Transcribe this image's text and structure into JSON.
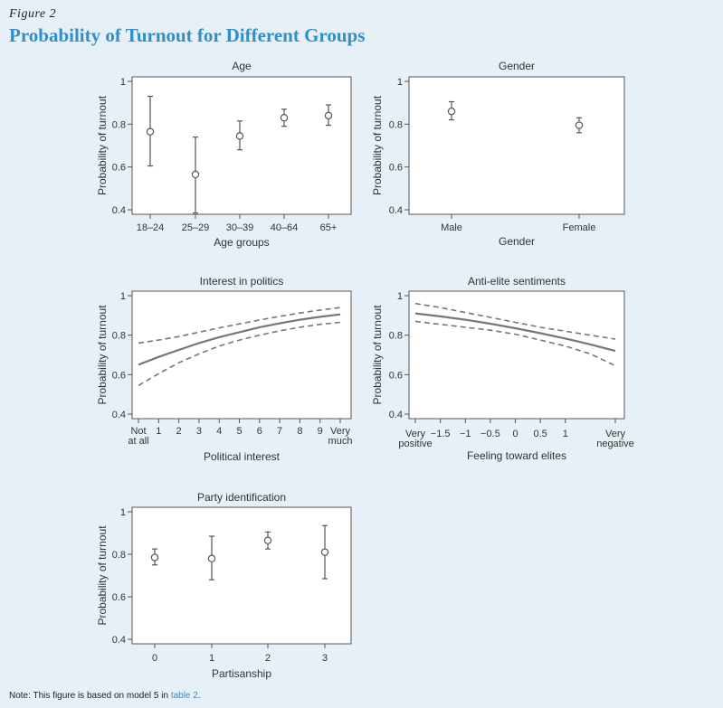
{
  "figure": {
    "label": "Figure 2",
    "title": "Probability of Turnout for Different Groups",
    "note_prefix": "Note: This figure is based on model 5 in ",
    "note_link": "table 2",
    "note_suffix": "."
  },
  "colors": {
    "title": "#2f8fc9",
    "marks": "#777777",
    "plot_bg": "#ffffff",
    "page_bg": "#e6f0f6"
  },
  "chart_data": [
    {
      "id": "age",
      "type": "scatter",
      "title": "Age",
      "xlabel": "Age groups",
      "ylabel": "Probability of turnout",
      "categories": [
        "18–24",
        "25–29",
        "30–39",
        "40–64",
        "65+"
      ],
      "values": [
        0.765,
        0.565,
        0.745,
        0.83,
        0.84
      ],
      "ci_low": [
        0.605,
        0.385,
        0.68,
        0.79,
        0.795
      ],
      "ci_high": [
        0.93,
        0.74,
        0.815,
        0.87,
        0.89
      ],
      "ylim": [
        0.4,
        1
      ],
      "yticks": [
        0.4,
        0.6,
        0.8,
        1
      ],
      "ytick_labels": [
        "0.4",
        "0.6",
        "0.8",
        "1"
      ],
      "grid": false
    },
    {
      "id": "gender",
      "type": "scatter",
      "title": "Gender",
      "xlabel": "Gender",
      "ylabel": "Probability of turnout",
      "categories": [
        "Male",
        "Female"
      ],
      "values": [
        0.86,
        0.795
      ],
      "ci_low": [
        0.82,
        0.76
      ],
      "ci_high": [
        0.905,
        0.83
      ],
      "ylim": [
        0.4,
        1
      ],
      "yticks": [
        0.4,
        0.6,
        0.8,
        1
      ],
      "ytick_labels": [
        "0.4",
        "0.6",
        "0.8",
        "1"
      ],
      "grid": false
    },
    {
      "id": "interest",
      "type": "line",
      "title": "Interest in politics",
      "xlabel": "Political interest",
      "ylabel": "Probability of turnout",
      "x": [
        0,
        1,
        2,
        3,
        4,
        5,
        6,
        7,
        8,
        9,
        10
      ],
      "series": [
        {
          "role": "estimate",
          "style": "solid",
          "values": [
            0.65,
            0.69,
            0.725,
            0.76,
            0.79,
            0.815,
            0.84,
            0.86,
            0.878,
            0.893,
            0.905
          ]
        },
        {
          "role": "upper_ci",
          "style": "dashed",
          "values": [
            0.76,
            0.775,
            0.793,
            0.815,
            0.837,
            0.857,
            0.877,
            0.895,
            0.912,
            0.927,
            0.94
          ]
        },
        {
          "role": "lower_ci",
          "style": "dashed",
          "values": [
            0.545,
            0.605,
            0.66,
            0.705,
            0.745,
            0.775,
            0.8,
            0.822,
            0.84,
            0.855,
            0.865
          ]
        }
      ],
      "xticks": [
        0,
        1,
        2,
        3,
        4,
        5,
        6,
        7,
        8,
        9,
        10
      ],
      "xtick_labels": [
        [
          "Not",
          "at all"
        ],
        [
          "1"
        ],
        [
          "2"
        ],
        [
          "3"
        ],
        [
          "4"
        ],
        [
          "5"
        ],
        [
          "6"
        ],
        [
          "7"
        ],
        [
          "8"
        ],
        [
          "9"
        ],
        [
          "Very",
          "much"
        ]
      ],
      "ylim": [
        0.4,
        1
      ],
      "yticks": [
        0.4,
        0.6,
        0.8,
        1
      ],
      "ytick_labels": [
        "0.4",
        "0.6",
        "0.8",
        "1"
      ],
      "grid": false
    },
    {
      "id": "antielite",
      "type": "line",
      "title": "Anti-elite sentiments",
      "xlabel": "Feeling toward elites",
      "ylabel": "Probability of turnout",
      "x": [
        -2,
        -1.5,
        -1,
        -0.5,
        0,
        0.5,
        1,
        1.5,
        2
      ],
      "series": [
        {
          "role": "estimate",
          "style": "solid",
          "values": [
            0.91,
            0.895,
            0.878,
            0.858,
            0.835,
            0.81,
            0.783,
            0.753,
            0.72
          ]
        },
        {
          "role": "upper_ci",
          "style": "dashed",
          "values": [
            0.96,
            0.94,
            0.915,
            0.89,
            0.865,
            0.84,
            0.82,
            0.8,
            0.78
          ]
        },
        {
          "role": "lower_ci",
          "style": "dashed",
          "values": [
            0.87,
            0.855,
            0.84,
            0.825,
            0.805,
            0.775,
            0.745,
            0.705,
            0.645
          ]
        }
      ],
      "xticks": [
        -2,
        -1.5,
        -1,
        -0.5,
        0,
        0.5,
        1,
        2
      ],
      "xtick_labels": [
        [
          "Very",
          "positive"
        ],
        [
          "−1.5"
        ],
        [
          "−1"
        ],
        [
          "−0.5"
        ],
        [
          "0"
        ],
        [
          "0.5"
        ],
        [
          "1"
        ],
        [
          "Very",
          "negative"
        ]
      ],
      "ylim": [
        0.4,
        1
      ],
      "yticks": [
        0.4,
        0.6,
        0.8,
        1
      ],
      "ytick_labels": [
        "0.4",
        "0.6",
        "0.8",
        "1"
      ],
      "grid": false
    },
    {
      "id": "party",
      "type": "scatter",
      "title": "Party identification",
      "xlabel": "Partisanship",
      "ylabel": "Probability of turnout",
      "categories": [
        "0",
        "1",
        "2",
        "3"
      ],
      "values": [
        0.785,
        0.78,
        0.865,
        0.81
      ],
      "ci_low": [
        0.75,
        0.68,
        0.825,
        0.685
      ],
      "ci_high": [
        0.825,
        0.885,
        0.905,
        0.935
      ],
      "ylim": [
        0.4,
        1
      ],
      "yticks": [
        0.4,
        0.6,
        0.8,
        1
      ],
      "ytick_labels": [
        "0.4",
        "0.6",
        "0.8",
        "1"
      ],
      "grid": false
    }
  ]
}
